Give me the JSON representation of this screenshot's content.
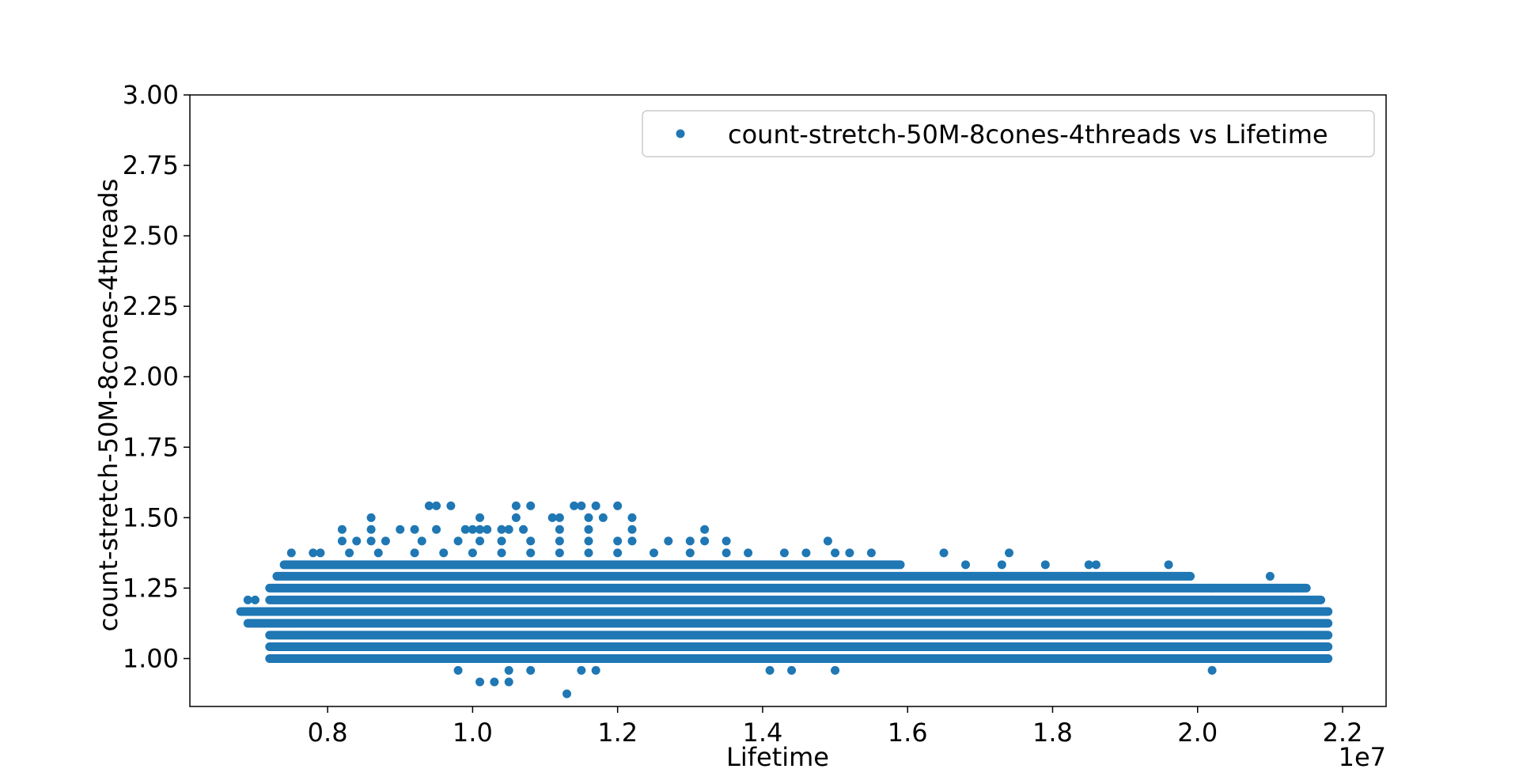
{
  "chart_data": {
    "type": "scatter",
    "title": "",
    "xlabel": "Lifetime",
    "ylabel": "count-stretch-50M-8cones-4threads",
    "x_offset_label": "1e7",
    "xlim": [
      0.61,
      2.26
    ],
    "ylim": [
      0.83,
      3.0
    ],
    "x_ticks": [
      0.8,
      1.0,
      1.2,
      1.4,
      1.6,
      1.8,
      2.0,
      2.2
    ],
    "x_tick_labels": [
      "0.8",
      "1.0",
      "1.2",
      "1.4",
      "1.6",
      "1.8",
      "2.0",
      "2.2"
    ],
    "y_ticks": [
      1.0,
      1.25,
      1.5,
      1.75,
      2.0,
      2.25,
      2.5,
      2.75,
      3.0
    ],
    "y_tick_labels": [
      "1.00",
      "1.25",
      "1.50",
      "1.75",
      "2.00",
      "2.25",
      "2.50",
      "2.75",
      "3.00"
    ],
    "grid": false,
    "legend_position": "top-right",
    "series": [
      {
        "name": "count-stretch-50M-8cones-4threads vs Lifetime",
        "color": "#1f77b4",
        "bands": [
          {
            "y": 1.0,
            "x_start": 0.72,
            "x_end": 2.18
          },
          {
            "y": 1.042,
            "x_start": 0.72,
            "x_end": 2.18
          },
          {
            "y": 1.083,
            "x_start": 0.72,
            "x_end": 2.18
          },
          {
            "y": 1.125,
            "x_start": 0.69,
            "x_end": 2.18
          },
          {
            "y": 1.167,
            "x_start": 0.68,
            "x_end": 2.18
          },
          {
            "y": 1.208,
            "x_start": 0.72,
            "x_end": 2.17
          },
          {
            "y": 1.25,
            "x_start": 0.72,
            "x_end": 2.15
          },
          {
            "y": 1.292,
            "x_start": 0.73,
            "x_end": 1.99
          },
          {
            "y": 1.333,
            "x_start": 0.74,
            "x_end": 1.59
          }
        ],
        "points": [
          [
            0.7,
            1.208
          ],
          [
            0.69,
            1.208
          ],
          [
            0.75,
            1.375
          ],
          [
            0.78,
            1.375
          ],
          [
            0.79,
            1.375
          ],
          [
            0.83,
            1.375
          ],
          [
            0.87,
            1.375
          ],
          [
            0.92,
            1.375
          ],
          [
            0.96,
            1.375
          ],
          [
            1.0,
            1.375
          ],
          [
            1.04,
            1.375
          ],
          [
            1.08,
            1.375
          ],
          [
            1.12,
            1.375
          ],
          [
            1.16,
            1.375
          ],
          [
            1.2,
            1.375
          ],
          [
            1.25,
            1.375
          ],
          [
            1.3,
            1.375
          ],
          [
            1.35,
            1.375
          ],
          [
            1.38,
            1.375
          ],
          [
            1.43,
            1.375
          ],
          [
            1.46,
            1.375
          ],
          [
            1.5,
            1.375
          ],
          [
            1.52,
            1.375
          ],
          [
            1.55,
            1.375
          ],
          [
            1.65,
            1.375
          ],
          [
            1.74,
            1.375
          ],
          [
            0.82,
            1.417
          ],
          [
            0.84,
            1.417
          ],
          [
            0.86,
            1.417
          ],
          [
            0.88,
            1.417
          ],
          [
            0.93,
            1.417
          ],
          [
            0.98,
            1.417
          ],
          [
            1.01,
            1.417
          ],
          [
            1.04,
            1.417
          ],
          [
            1.08,
            1.417
          ],
          [
            1.12,
            1.417
          ],
          [
            1.16,
            1.417
          ],
          [
            1.2,
            1.417
          ],
          [
            1.22,
            1.417
          ],
          [
            1.27,
            1.417
          ],
          [
            1.3,
            1.417
          ],
          [
            1.32,
            1.417
          ],
          [
            1.35,
            1.417
          ],
          [
            1.49,
            1.417
          ],
          [
            0.82,
            1.458
          ],
          [
            0.86,
            1.458
          ],
          [
            0.9,
            1.458
          ],
          [
            0.92,
            1.458
          ],
          [
            0.95,
            1.458
          ],
          [
            0.99,
            1.458
          ],
          [
            1.0,
            1.458
          ],
          [
            1.01,
            1.458
          ],
          [
            1.02,
            1.458
          ],
          [
            1.04,
            1.458
          ],
          [
            1.05,
            1.458
          ],
          [
            1.07,
            1.458
          ],
          [
            1.12,
            1.458
          ],
          [
            1.16,
            1.458
          ],
          [
            1.22,
            1.458
          ],
          [
            1.32,
            1.458
          ],
          [
            0.86,
            1.5
          ],
          [
            1.01,
            1.5
          ],
          [
            1.06,
            1.5
          ],
          [
            1.11,
            1.5
          ],
          [
            1.12,
            1.5
          ],
          [
            1.16,
            1.5
          ],
          [
            1.18,
            1.5
          ],
          [
            1.22,
            1.5
          ],
          [
            0.94,
            1.542
          ],
          [
            0.95,
            1.542
          ],
          [
            0.97,
            1.542
          ],
          [
            1.06,
            1.542
          ],
          [
            1.08,
            1.542
          ],
          [
            1.14,
            1.542
          ],
          [
            1.15,
            1.542
          ],
          [
            1.17,
            1.542
          ],
          [
            1.2,
            1.542
          ],
          [
            1.68,
            1.333
          ],
          [
            1.73,
            1.333
          ],
          [
            1.79,
            1.333
          ],
          [
            1.85,
            1.333
          ],
          [
            1.86,
            1.333
          ],
          [
            1.96,
            1.333
          ],
          [
            2.1,
            1.292
          ],
          [
            2.02,
            1.25
          ],
          [
            2.13,
            1.25
          ],
          [
            0.98,
            0.958
          ],
          [
            1.05,
            0.958
          ],
          [
            1.08,
            0.958
          ],
          [
            1.15,
            0.958
          ],
          [
            1.17,
            0.958
          ],
          [
            1.41,
            0.958
          ],
          [
            1.44,
            0.958
          ],
          [
            1.5,
            0.958
          ],
          [
            2.02,
            0.958
          ],
          [
            1.01,
            0.917
          ],
          [
            1.03,
            0.917
          ],
          [
            1.05,
            0.917
          ],
          [
            1.13,
            0.875
          ]
        ]
      }
    ]
  }
}
